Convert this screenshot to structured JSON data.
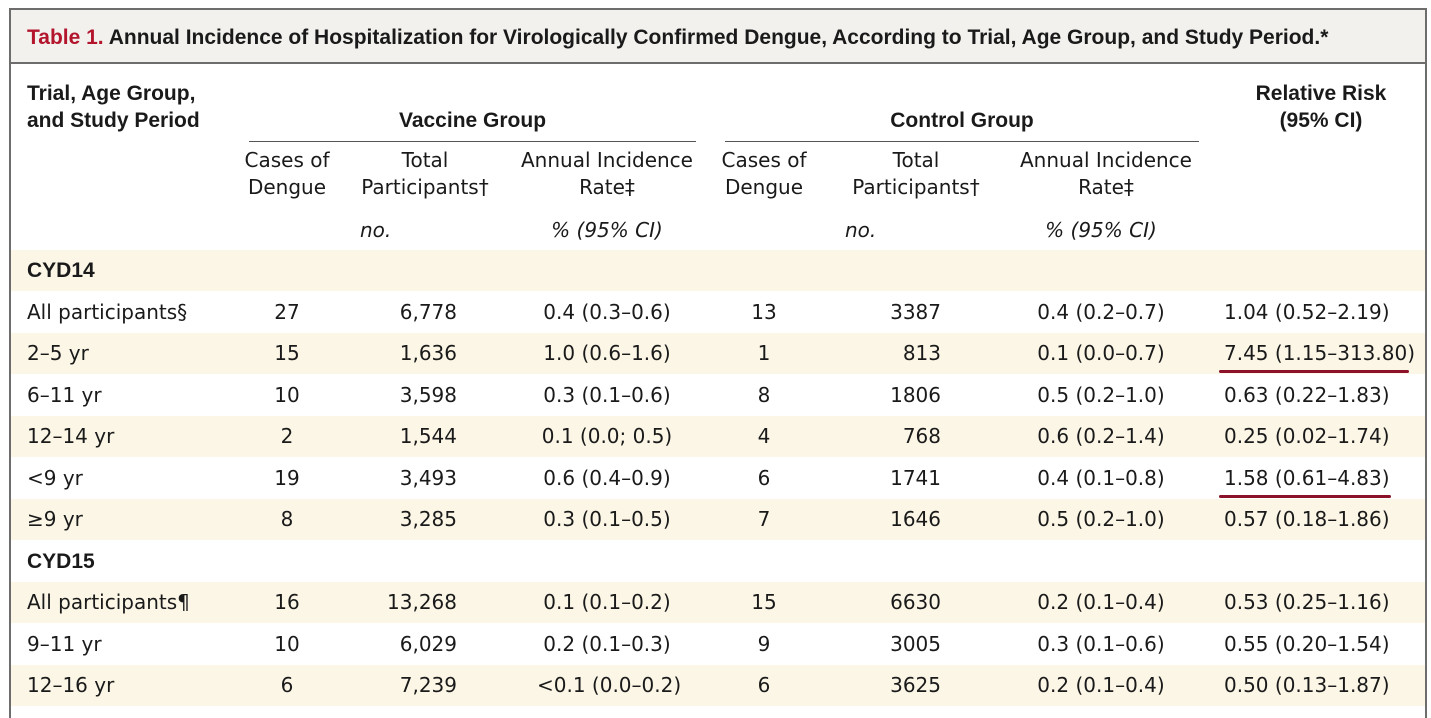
{
  "title": {
    "label": "Table 1.",
    "text": "Annual Incidence of Hospitalization for Virologically Confirmed Dengue, According to Trial, Age Group, and Study Period.*"
  },
  "headers": {
    "row_label_line1": "Trial, Age Group,",
    "row_label_line2": "and Study Period",
    "vaccine_group": "Vaccine Group",
    "control_group": "Control Group",
    "relative_risk_line1": "Relative Risk",
    "relative_risk_line2": "(95% CI)",
    "cases_line1": "Cases of",
    "cases_line2": "Dengue",
    "total_line1": "Total",
    "total_line2": "Participants†",
    "rate_line1": "Annual Incidence",
    "rate_line2": "Rate‡",
    "unit_no": "no.",
    "unit_pct": "% (95% CI)"
  },
  "sections": [
    {
      "name": "CYD14",
      "rows": [
        {
          "label": "All participants§",
          "v_cases": "27",
          "v_total": "6,778",
          "v_rate": "0.4 (0.3–0.6)",
          "c_cases": "13",
          "c_total": "3387",
          "c_rate": "0.4 (0.2–0.7)",
          "rr": "1.04 (0.52–2.19)"
        },
        {
          "label": "2–5 yr",
          "v_cases": "15",
          "v_total": "1,636",
          "v_rate": "1.0 (0.6–1.6)",
          "c_cases": "1",
          "c_total": "813",
          "c_rate": "0.1 (0.0–0.7)",
          "rr": "7.45 (1.15–313.80)"
        },
        {
          "label": "6–11 yr",
          "v_cases": "10",
          "v_total": "3,598",
          "v_rate": "0.3 (0.1–0.6)",
          "c_cases": "8",
          "c_total": "1806",
          "c_rate": "0.5 (0.2–1.0)",
          "rr": "0.63 (0.22–1.83)"
        },
        {
          "label": "12–14 yr",
          "v_cases": "2",
          "v_total": "1,544",
          "v_rate": "0.1 (0.0; 0.5)",
          "c_cases": "4",
          "c_total": "768",
          "c_rate": "0.6 (0.2–1.4)",
          "rr": "0.25 (0.02–1.74)"
        },
        {
          "label": "<9 yr",
          "v_cases": "19",
          "v_total": "3,493",
          "v_rate": "0.6 (0.4–0.9)",
          "c_cases": "6",
          "c_total": "1741",
          "c_rate": "0.4 (0.1–0.8)",
          "rr": "1.58 (0.61–4.83)"
        },
        {
          "label": "≥9 yr",
          "v_cases": "8",
          "v_total": "3,285",
          "v_rate": "0.3 (0.1–0.5)",
          "c_cases": "7",
          "c_total": "1646",
          "c_rate": "0.5 (0.2–1.0)",
          "rr": "0.57 (0.18–1.86)"
        }
      ]
    },
    {
      "name": "CYD15",
      "rows": [
        {
          "label": "All participants¶",
          "v_cases": "16",
          "v_total": "13,268",
          "v_rate": "0.1 (0.1–0.2)",
          "c_cases": "15",
          "c_total": "6630",
          "c_rate": "0.2 (0.1–0.4)",
          "rr": "0.53 (0.25–1.16)"
        },
        {
          "label": "9–11 yr",
          "v_cases": "10",
          "v_total": "6,029",
          "v_rate": "0.2 (0.1–0.3)",
          "c_cases": "9",
          "c_total": "3005",
          "c_rate": "0.3 (0.1–0.6)",
          "rr": "0.55 (0.20–1.54)"
        },
        {
          "label": "12–16 yr",
          "v_cases": "6",
          "v_total": "7,239",
          "v_rate": "<0.1 (0.0–0.2)",
          "c_cases": "6",
          "c_total": "3625",
          "c_rate": "0.2 (0.1–0.4)",
          "rr": "0.50 (0.13–1.87)"
        }
      ]
    }
  ],
  "colors": {
    "title_label": "#b3152c",
    "title_background": "#f2f1ee",
    "row_shading": "#fbf6e6",
    "annotation_underline": "#8b1228"
  }
}
